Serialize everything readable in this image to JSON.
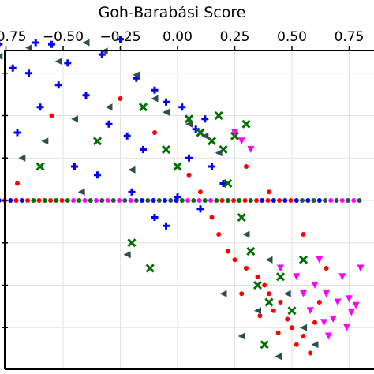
{
  "chart_data": {
    "type": "scatter",
    "title": "",
    "xlabel": "Goh-Barabási Score",
    "ylabel": "",
    "xlim": [
      -0.8,
      0.8
    ],
    "x_ticks": [
      -0.75,
      -0.5,
      -0.25,
      0.0,
      0.25,
      0.5,
      0.75
    ],
    "x_tick_labels": [
      "−0.75",
      "−0.50",
      "−0.25",
      "0.00",
      "0.25",
      "0.50",
      "0.75"
    ],
    "x_axis_position": "top",
    "grid": true,
    "legend": "none",
    "series": [
      {
        "color": "#0000ff",
        "marker": "plus",
        "points": [
          [
            -0.78,
            0.92
          ],
          [
            -0.62,
            0.93
          ],
          [
            -0.55,
            0.92
          ],
          [
            -0.72,
            0.78
          ],
          [
            -0.48,
            0.81
          ],
          [
            -0.33,
            0.86
          ],
          [
            -0.25,
            0.95
          ],
          [
            -0.18,
            0.72
          ],
          [
            -0.1,
            0.65
          ],
          [
            -0.05,
            0.58
          ],
          [
            0.02,
            0.55
          ],
          [
            0.08,
            0.42
          ],
          [
            0.12,
            0.48
          ],
          [
            -0.4,
            0.62
          ],
          [
            -0.6,
            0.55
          ],
          [
            -0.7,
            0.4
          ],
          [
            -0.3,
            0.45
          ],
          [
            -0.22,
            0.38
          ],
          [
            -0.15,
            0.3
          ],
          [
            0.05,
            0.25
          ],
          [
            0.15,
            0.2
          ],
          [
            -0.45,
            0.2
          ],
          [
            -0.35,
            0.15
          ],
          [
            -0.2,
            0.05
          ],
          [
            0.0,
            0.02
          ],
          [
            0.1,
            -0.05
          ],
          [
            -0.1,
            -0.1
          ],
          [
            -0.05,
            -0.15
          ],
          [
            0.2,
            0.1
          ],
          [
            -0.65,
            0.75
          ],
          [
            -0.52,
            0.68
          ]
        ]
      },
      {
        "color": "#ff0000",
        "marker": "circle",
        "points": [
          [
            0.35,
            -0.45
          ],
          [
            0.4,
            -0.55
          ],
          [
            0.45,
            -0.6
          ],
          [
            0.48,
            -0.7
          ],
          [
            0.5,
            -0.75
          ],
          [
            0.55,
            -0.8
          ],
          [
            0.42,
            -0.65
          ],
          [
            0.38,
            -0.5
          ],
          [
            0.3,
            -0.4
          ],
          [
            0.25,
            -0.35
          ],
          [
            0.52,
            -0.85
          ],
          [
            0.58,
            -0.9
          ],
          [
            0.6,
            -0.72
          ],
          [
            0.62,
            -0.6
          ],
          [
            0.44,
            -0.78
          ],
          [
            0.36,
            -0.68
          ],
          [
            0.28,
            -0.55
          ],
          [
            0.22,
            -0.3
          ],
          [
            0.18,
            -0.2
          ],
          [
            0.15,
            -0.1
          ],
          [
            0.1,
            0.05
          ],
          [
            0.05,
            0.15
          ],
          [
            -0.1,
            0.4
          ],
          [
            -0.25,
            0.6
          ],
          [
            -0.55,
            0.5
          ],
          [
            -0.7,
            0.1
          ],
          [
            0.3,
            0.2
          ],
          [
            0.4,
            0.05
          ],
          [
            0.55,
            -0.2
          ],
          [
            0.65,
            -0.4
          ]
        ]
      },
      {
        "color": "#007000",
        "marker": "x",
        "points": [
          [
            0.1,
            0.4
          ],
          [
            0.15,
            0.35
          ],
          [
            0.2,
            0.3
          ],
          [
            0.25,
            0.38
          ],
          [
            0.3,
            0.45
          ],
          [
            0.18,
            0.5
          ],
          [
            0.05,
            0.48
          ],
          [
            -0.05,
            0.3
          ],
          [
            0.0,
            0.2
          ],
          [
            0.22,
            0.1
          ],
          [
            0.28,
            -0.1
          ],
          [
            0.32,
            -0.3
          ],
          [
            0.35,
            -0.5
          ],
          [
            0.4,
            -0.6
          ],
          [
            0.45,
            -0.45
          ],
          [
            -0.15,
            0.55
          ],
          [
            -0.35,
            0.35
          ],
          [
            -0.6,
            0.2
          ],
          [
            -0.2,
            -0.25
          ],
          [
            -0.12,
            -0.4
          ],
          [
            0.38,
            -0.85
          ],
          [
            0.5,
            -0.65
          ],
          [
            0.55,
            -0.35
          ]
        ]
      },
      {
        "color": "#ff00ff",
        "marker": "triangle-down",
        "points": [
          [
            0.6,
            -0.5
          ],
          [
            0.65,
            -0.55
          ],
          [
            0.7,
            -0.6
          ],
          [
            0.75,
            -0.58
          ],
          [
            0.78,
            -0.62
          ],
          [
            0.68,
            -0.7
          ],
          [
            0.72,
            -0.45
          ],
          [
            0.62,
            -0.35
          ],
          [
            0.58,
            -0.65
          ],
          [
            0.74,
            -0.75
          ],
          [
            0.66,
            -0.8
          ],
          [
            0.52,
            -0.45
          ],
          [
            0.45,
            -0.4
          ],
          [
            0.55,
            -0.55
          ],
          [
            0.25,
            0.4
          ],
          [
            0.28,
            0.35
          ],
          [
            0.32,
            0.3
          ],
          [
            0.8,
            -0.4
          ],
          [
            0.76,
            -0.66
          ],
          [
            0.64,
            -0.72
          ]
        ]
      },
      {
        "color": "#2f4f4f",
        "marker": "triangle-left",
        "points": [
          [
            -0.78,
            0.85
          ],
          [
            -0.65,
            0.9
          ],
          [
            -0.52,
            0.82
          ],
          [
            -0.4,
            0.93
          ],
          [
            -0.32,
            0.88
          ],
          [
            -0.18,
            0.74
          ],
          [
            -0.1,
            0.6
          ],
          [
            -0.05,
            0.52
          ],
          [
            0.05,
            0.45
          ],
          [
            0.12,
            0.38
          ],
          [
            0.18,
            0.28
          ],
          [
            -0.3,
            0.55
          ],
          [
            -0.45,
            0.48
          ],
          [
            -0.58,
            0.35
          ],
          [
            -0.68,
            0.25
          ],
          [
            -0.2,
            0.18
          ],
          [
            0.3,
            -0.2
          ],
          [
            0.4,
            -0.35
          ],
          [
            0.48,
            -0.55
          ],
          [
            0.55,
            -0.75
          ],
          [
            0.35,
            -0.65
          ],
          [
            0.28,
            -0.8
          ],
          [
            0.44,
            -0.92
          ],
          [
            0.6,
            -0.85
          ],
          [
            0.2,
            -0.55
          ],
          [
            -0.22,
            -0.32
          ],
          [
            -0.42,
            0.05
          ]
        ]
      }
    ],
    "horizontal_band_y": 0.0
  }
}
